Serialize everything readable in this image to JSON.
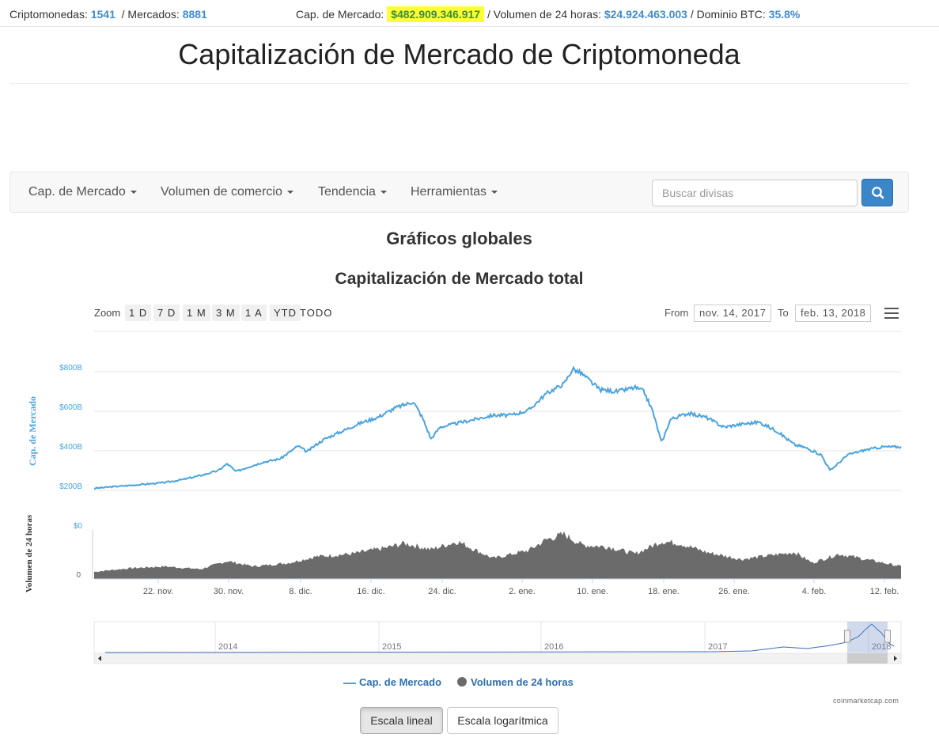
{
  "stats": {
    "cryptos_label": "Criptomonedas:",
    "cryptos_value": "1541",
    "markets_label": "/ Mercados:",
    "markets_value": "8881",
    "marketcap_label": "Cap. de Mercado:",
    "marketcap_value": "$482.909.346.917",
    "volume_label": "/ Volumen de 24 horas:",
    "volume_value": "$24.924.463.003",
    "btc_label": "/ Dominio BTC:",
    "btc_value": "35.8%"
  },
  "page_title": "Capitalización de Mercado de Criptomoneda",
  "nav": {
    "items": [
      {
        "label": "Cap. de Mercado"
      },
      {
        "label": "Volumen de comercio"
      },
      {
        "label": "Tendencia"
      },
      {
        "label": "Herramientas"
      }
    ],
    "search_placeholder": "Buscar divisas"
  },
  "section_title": "Gráficos globales",
  "chart": {
    "title": "Capitalización de Mercado total",
    "zoom_label": "Zoom",
    "zoom_buttons": [
      "1 D",
      "7 D",
      "1 M",
      "3 M",
      "1 A",
      "YTD",
      "TODO"
    ],
    "from_label": "From",
    "from_value": "nov. 14, 2017",
    "to_label": "To",
    "to_value": "feb. 13, 2018",
    "legend_marketcap": "Cap. de Mercado",
    "legend_volume": "Volumen de 24 horas",
    "credit": "coinmarketcap.com"
  },
  "chart_data": {
    "type": "line",
    "title": "Capitalización de Mercado total",
    "ylabel": "Cap. de Mercado",
    "ylabel_volume": "Volumen de 24 horas",
    "y_ticks": [
      "$0",
      "$200B",
      "$400B",
      "$600B",
      "$800B"
    ],
    "volume_ticks": [
      "0"
    ],
    "ylim": [
      0,
      900
    ],
    "y_unit": "B USD",
    "x_ticks": [
      "22. nov.",
      "30. nov.",
      "8. dic.",
      "16. dic.",
      "24. dic.",
      "2. ene.",
      "10. ene.",
      "18. ene.",
      "26. ene.",
      "4. feb.",
      "12. feb."
    ],
    "grid": true,
    "legend_position": "bottom",
    "series": [
      {
        "name": "Cap. de Mercado",
        "color": "#4aa3df",
        "x": [
          "2017-11-14",
          "2017-11-16",
          "2017-11-18",
          "2017-11-20",
          "2017-11-22",
          "2017-11-24",
          "2017-11-26",
          "2017-11-28",
          "2017-11-29",
          "2017-11-30",
          "2017-12-01",
          "2017-12-03",
          "2017-12-05",
          "2017-12-07",
          "2017-12-08",
          "2017-12-09",
          "2017-12-10",
          "2017-12-12",
          "2017-12-14",
          "2017-12-16",
          "2017-12-18",
          "2017-12-20",
          "2017-12-21",
          "2017-12-22",
          "2017-12-23",
          "2017-12-25",
          "2017-12-27",
          "2017-12-29",
          "2017-12-31",
          "2018-01-02",
          "2018-01-04",
          "2018-01-06",
          "2018-01-07",
          "2018-01-08",
          "2018-01-10",
          "2018-01-12",
          "2018-01-14",
          "2018-01-15",
          "2018-01-16",
          "2018-01-17",
          "2018-01-18",
          "2018-01-20",
          "2018-01-22",
          "2018-01-24",
          "2018-01-26",
          "2018-01-28",
          "2018-01-30",
          "2018-02-01",
          "2018-02-02",
          "2018-02-04",
          "2018-02-05",
          "2018-02-06",
          "2018-02-07",
          "2018-02-09",
          "2018-02-11",
          "2018-02-13"
        ],
        "values": [
          210,
          218,
          225,
          232,
          240,
          255,
          275,
          300,
          335,
          295,
          312,
          342,
          360,
          425,
          395,
          430,
          460,
          500,
          540,
          570,
          618,
          648,
          570,
          460,
          520,
          540,
          560,
          580,
          580,
          605,
          690,
          740,
          815,
          790,
          710,
          700,
          720,
          700,
          600,
          440,
          560,
          590,
          570,
          520,
          535,
          545,
          500,
          430,
          420,
          380,
          300,
          340,
          380,
          405,
          420,
          420
        ]
      },
      {
        "name": "Volumen de 24 horas",
        "color": "#6b6b6b",
        "x": [
          "2017-11-14",
          "2017-11-18",
          "2017-11-22",
          "2017-11-26",
          "2017-11-29",
          "2017-12-02",
          "2017-12-06",
          "2017-12-09",
          "2017-12-13",
          "2017-12-17",
          "2017-12-19",
          "2017-12-22",
          "2017-12-25",
          "2017-12-29",
          "2018-01-02",
          "2018-01-04",
          "2018-01-06",
          "2018-01-08",
          "2018-01-11",
          "2018-01-14",
          "2018-01-17",
          "2018-01-19",
          "2018-01-22",
          "2018-01-26",
          "2018-01-29",
          "2018-02-01",
          "2018-02-03",
          "2018-02-06",
          "2018-02-09",
          "2018-02-13"
        ],
        "values": [
          8,
          12,
          14,
          11,
          20,
          14,
          18,
          25,
          28,
          35,
          40,
          33,
          42,
          23,
          32,
          44,
          50,
          38,
          36,
          28,
          42,
          40,
          30,
          22,
          26,
          30,
          18,
          28,
          22,
          14
        ],
        "unit": "B USD"
      }
    ],
    "navigator_ticks": [
      "2014",
      "2015",
      "2016",
      "2017",
      "2018"
    ]
  },
  "scale_buttons": {
    "linear": "Escala lineal",
    "log": "Escala logarítmica"
  },
  "colors": {
    "accent": "#428bca",
    "highlight": "#ffff33",
    "highlight_text": "#3a8d3a",
    "line": "#4aa3df",
    "volume": "#6b6b6b"
  }
}
